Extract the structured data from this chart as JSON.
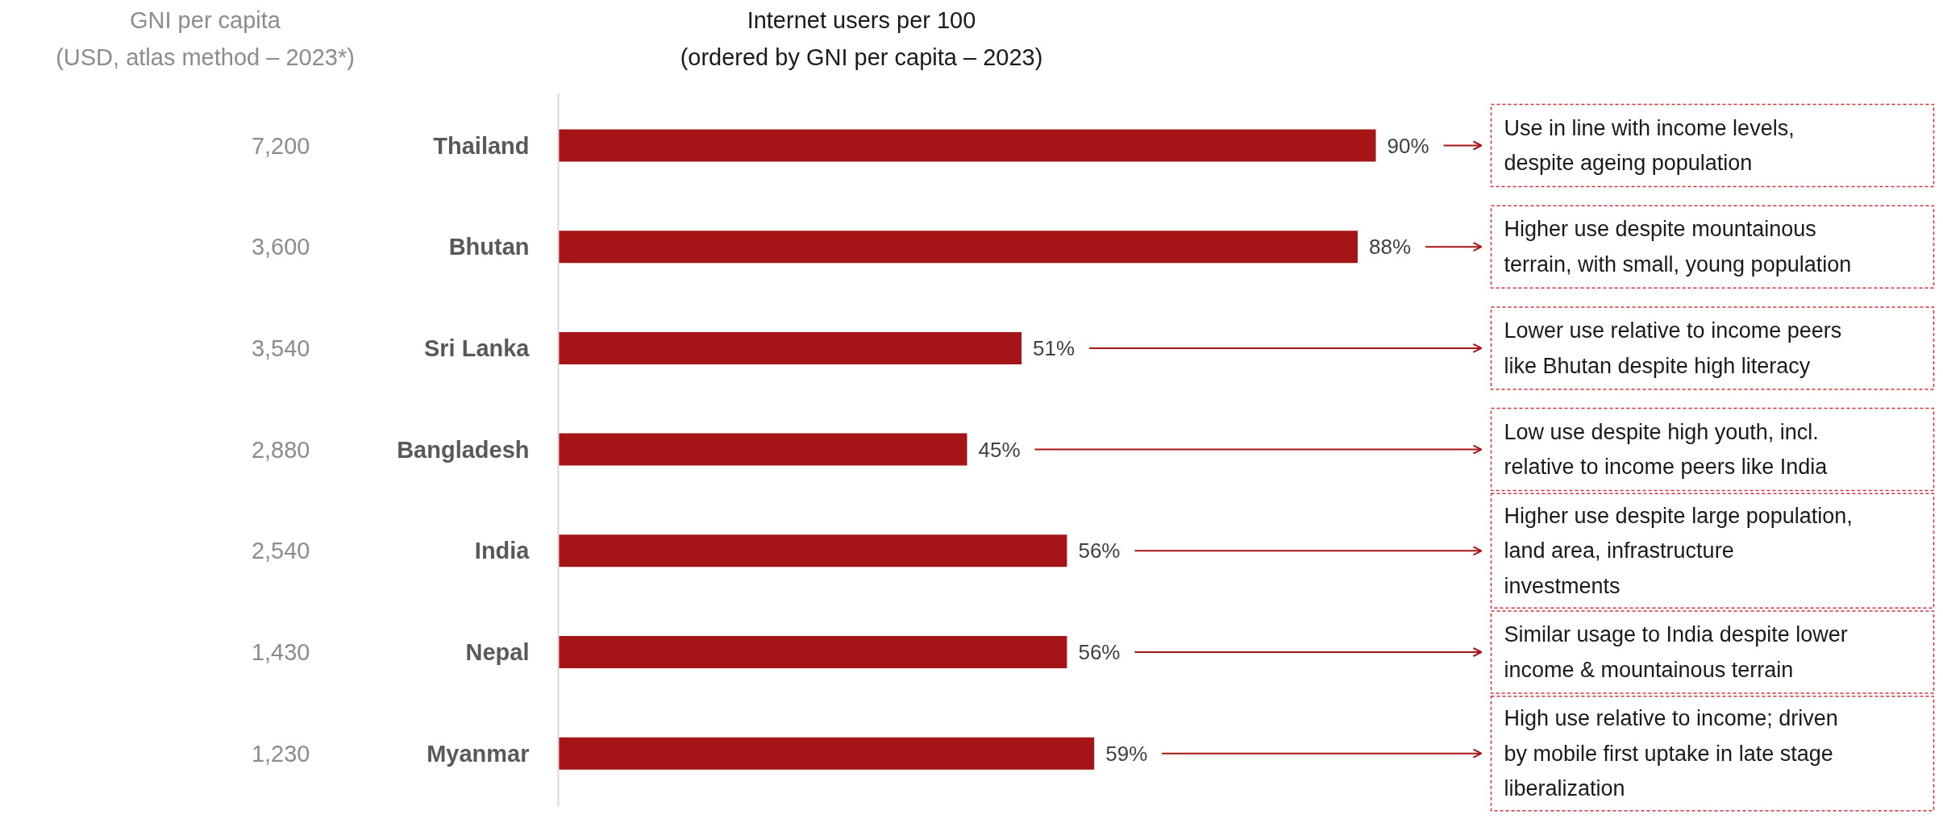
{
  "chart_data": {
    "type": "bar",
    "orientation": "horizontal",
    "title": "Internet users per 100\n(ordered by GNI per capita – 2023)",
    "y2label": "GNI per capita\n(USD, atlas method – 2023*)",
    "categories": [
      "Thailand",
      "Bhutan",
      "Sri Lanka",
      "Bangladesh",
      "India",
      "Nepal",
      "Myanmar"
    ],
    "y2_categories": [
      "7,200",
      "3,600",
      "3,540",
      "2,880",
      "2,540",
      "1,430",
      "1,230"
    ],
    "values": [
      90,
      88,
      51,
      45,
      56,
      56,
      59
    ],
    "value_labels": [
      "90%",
      "88%",
      "51%",
      "45%",
      "56%",
      "56%",
      "59%"
    ],
    "color": "#a51416",
    "annotations": [
      "Use in line with income levels,\ndespite ageing population",
      "Higher use despite mountainous\nterrain, with small, young population",
      "Lower use relative to income peers\nlike Bhutan despite high literacy",
      "Low use despite high youth, incl.\nrelative to income peers like India",
      "Higher use despite large population,\nland area, infrastructure\ninvestments",
      "Similar usage to India despite lower\nincome & mountainous terrain",
      "High use relative to income; driven\nby mobile first uptake in late stage\nliberalization"
    ]
  }
}
